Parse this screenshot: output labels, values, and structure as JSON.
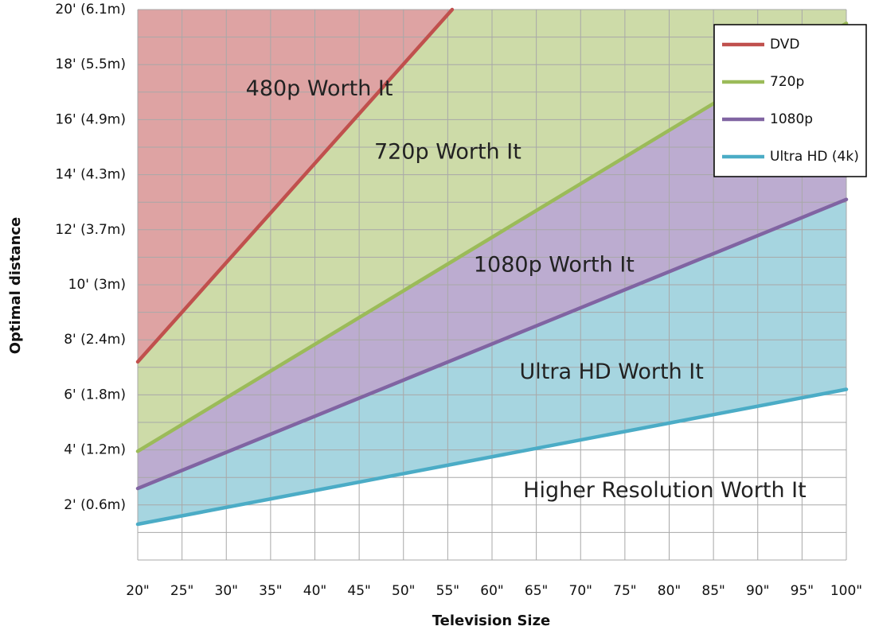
{
  "chart_data": {
    "type": "area",
    "title": "",
    "xlabel": "Television Size",
    "ylabel": "Optimal distance",
    "x": [
      20,
      100
    ],
    "x_ticks": [
      20,
      25,
      30,
      35,
      40,
      45,
      50,
      55,
      60,
      65,
      70,
      75,
      80,
      85,
      90,
      95,
      100
    ],
    "x_tick_labels": [
      "20\"",
      "25\"",
      "30\"",
      "35\"",
      "40\"",
      "45\"",
      "50\"",
      "55\"",
      "60\"",
      "65\"",
      "70\"",
      "75\"",
      "80\"",
      "85\"",
      "90\"",
      "95\"",
      "100\""
    ],
    "xlim": [
      20,
      100
    ],
    "y_ticks": [
      2,
      4,
      6,
      8,
      10,
      12,
      14,
      16,
      18,
      20
    ],
    "y_tick_labels": [
      "2' (0.6m)",
      "4' (1.2m)",
      "6' (1.8m)",
      "8' (2.4m)",
      "10' (3m)",
      "12' (3.7m)",
      "14' (4.3m)",
      "16' (4.9m)",
      "18' (5.5m)",
      "20' (6.1m)"
    ],
    "ylim": [
      0,
      20
    ],
    "grid": true,
    "legend_position": "top-right",
    "series": [
      {
        "name": "DVD",
        "color": "#c0504d",
        "fill": "#dea3a3",
        "x": [
          20,
          55.5
        ],
        "y": [
          7.2,
          20
        ]
      },
      {
        "name": "720p",
        "color": "#9bbb59",
        "fill": "#cddba8",
        "x": [
          20,
          100
        ],
        "y": [
          3.95,
          19.5
        ]
      },
      {
        "name": "1080p",
        "color": "#8064a2",
        "fill": "#bcacd0",
        "x": [
          20,
          100
        ],
        "y": [
          2.6,
          13.1
        ]
      },
      {
        "name": "Ultra HD (4k)",
        "color": "#4bacc6",
        "fill": "#a6d5e0",
        "x": [
          20,
          100
        ],
        "y": [
          1.3,
          6.2
        ]
      }
    ],
    "annotations": [
      {
        "text": "480p Worth It",
        "x": 40.5,
        "y": 17.1
      },
      {
        "text": "720p Worth It",
        "x": 55,
        "y": 14.8
      },
      {
        "text": "1080p Worth It",
        "x": 67,
        "y": 10.7
      },
      {
        "text": "Ultra HD Worth It",
        "x": 73.5,
        "y": 6.8
      },
      {
        "text": "Higher Resolution Worth It",
        "x": 79.5,
        "y": 2.5
      }
    ]
  }
}
